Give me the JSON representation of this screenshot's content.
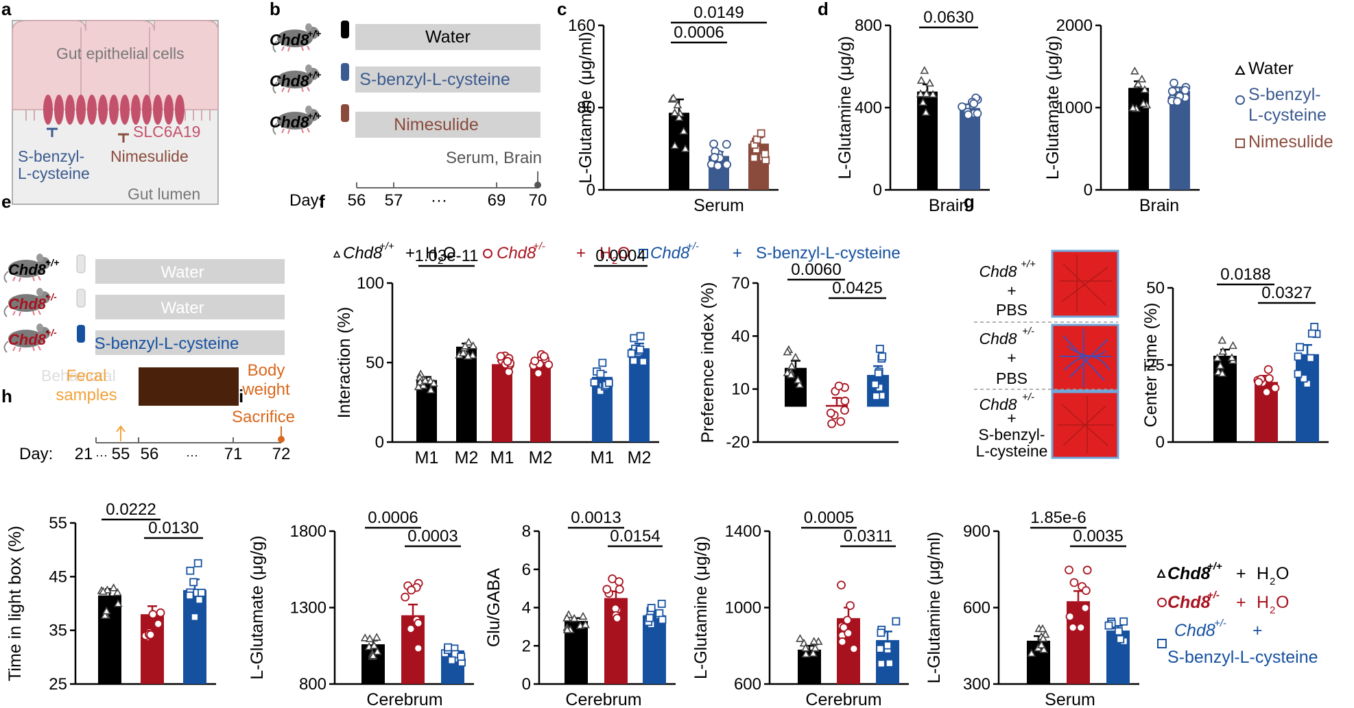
{
  "colors": {
    "water": "#000000",
    "sbc": "#3b5a8f",
    "nim": "#8a4b3c",
    "het": "#a8121e",
    "hsbc": "#1651a0",
    "pink": "#c4516b",
    "grey": "#d3d3d3",
    "orange": "#f2a23a",
    "darkorange": "#d9681c",
    "brown": "#4a210a"
  },
  "panels": {
    "a": "a",
    "b": "b",
    "c": "c",
    "d": "d",
    "e": "e",
    "f": "f",
    "g": "g",
    "h": "h",
    "i": "i"
  },
  "a": {
    "epithelial": "Gut epithelial cells",
    "transporter": "SLC6A19",
    "inhibitor1": [
      "S-benzyl-",
      "L-cysteine"
    ],
    "inhibitor2": "Nimesulide",
    "lumen": "Gut lumen"
  },
  "b": {
    "mouse_label": "Chd8",
    "mouse_sup": "+/+",
    "treatments": [
      "Water",
      "S-benzyl-L-cysteine",
      "Nimesulide"
    ],
    "endpoint": "Serum, Brain",
    "day_label": "Day:",
    "days": [
      "56",
      "57",
      "···",
      "69",
      "70"
    ]
  },
  "legend_d": {
    "items": [
      "Water",
      "S-benzyl-",
      "L-cysteine",
      "Nimesulide"
    ]
  },
  "e": {
    "genotypes": [
      "Chd8",
      "Chd8",
      "Chd8"
    ],
    "sups": [
      "+/+",
      "+/-",
      "+/-"
    ],
    "treatments": [
      "Water",
      "Water",
      "S-benzyl-L-cysteine"
    ],
    "behavior": "Behavioral",
    "fecal": [
      "Fecal",
      "samples"
    ],
    "body": [
      "Body",
      "weight"
    ],
    "sacrifice": "Sacrifice",
    "day_label": "Day:",
    "days": [
      "21",
      "···",
      "55",
      "56",
      "···",
      "71",
      "72"
    ]
  },
  "legend_f": {
    "g1": "Chd8",
    "s1": "+/+",
    "t1": "+",
    "h2o": "H",
    "o": "O",
    "sub2": "2",
    "g2": "Chd8",
    "s2": "+/-",
    "g3": "Chd8",
    "s3": "+/-",
    "sbc": "S-benzyl-L-cysteine"
  },
  "g": {
    "labels": [
      [
        "Chd8",
        "+/+",
        "+",
        "PBS"
      ],
      [
        "Chd8",
        "+/-",
        "+",
        "PBS"
      ],
      [
        "Chd8",
        "+/-",
        "+",
        "S-benzyl-",
        "L-cysteine"
      ]
    ]
  },
  "legend_i": {
    "g1": "Chd8",
    "s1": "+/+",
    "plus": "+",
    "h": "H",
    "o": "O",
    "sub2": "2",
    "g2": "Chd8",
    "s2": "+/-",
    "g3": "Chd8",
    "s3": "+/-",
    "sbc": "S-benzyl-L-cysteine"
  },
  "chart_data": [
    {
      "id": "c",
      "type": "bar",
      "ylabel": "L-Glutamine (μg/ml)",
      "xlabel": "Serum",
      "ylim": [
        0,
        160
      ],
      "yticks": [
        0,
        80,
        160
      ],
      "groups": [
        "Water",
        "S-benzyl-L-cysteine",
        "Nimesulide"
      ],
      "values": [
        75,
        33,
        45
      ],
      "errors": [
        13,
        4,
        6
      ],
      "pvalues": [
        {
          "from": 0,
          "to": 1,
          "label": "0.0006"
        },
        {
          "from": 0,
          "to": 2,
          "label": "0.0149"
        }
      ]
    },
    {
      "id": "d1",
      "type": "bar",
      "ylabel": "L-Glutamine (μg/g)",
      "xlabel": "Brain",
      "ylim": [
        0,
        800
      ],
      "yticks": [
        0,
        400,
        800
      ],
      "groups": [
        "Water",
        "S-benzyl-L-cysteine"
      ],
      "values": [
        478,
        398
      ],
      "errors": [
        35,
        18
      ],
      "pvalues": [
        {
          "from": 0,
          "to": 1,
          "label": "0.0630"
        }
      ]
    },
    {
      "id": "d2",
      "type": "bar",
      "ylabel": "L-Glutamate (μg/g)",
      "xlabel": "Brain",
      "ylim": [
        0,
        2000
      ],
      "yticks": [
        0,
        1000,
        2000
      ],
      "groups": [
        "Water",
        "S-benzyl-L-cysteine"
      ],
      "values": [
        1240,
        1200
      ],
      "errors": [
        80,
        45
      ],
      "pvalues": []
    },
    {
      "id": "f1",
      "type": "bar",
      "ylabel": "Interaction (%)",
      "xlabel": "",
      "ylim": [
        0,
        100
      ],
      "yticks": [
        0,
        50,
        100
      ],
      "categories": [
        "M1",
        "M2",
        "M1",
        "M2",
        "M1",
        "M2"
      ],
      "values": [
        39,
        60,
        49,
        49,
        41,
        59
      ],
      "errors": [
        2,
        2,
        2,
        2,
        3,
        3
      ],
      "pvalues": [
        {
          "from": 0,
          "to": 1,
          "label": "1.03e-11"
        },
        {
          "from": 4,
          "to": 5,
          "label": "0.0004"
        }
      ]
    },
    {
      "id": "f2",
      "type": "bar",
      "ylabel": "Preference index (%)",
      "xlabel": "",
      "ylim": [
        -20,
        70
      ],
      "yticks": [
        -20,
        10,
        40,
        70
      ],
      "groups": [
        "Chd8+/+ + H2O",
        "Chd8+/- + H2O",
        "Chd8+/- + S-benzyl-L-cysteine"
      ],
      "values": [
        22,
        1,
        18
      ],
      "errors": [
        4,
        4,
        5
      ],
      "pvalues": [
        {
          "from": 0,
          "to": 1,
          "label": "0.0060"
        },
        {
          "from": 1,
          "to": 2,
          "label": "0.0425"
        }
      ]
    },
    {
      "id": "g",
      "type": "bar",
      "ylabel": "Center Time (%)",
      "xlabel": "",
      "ylim": [
        0,
        50
      ],
      "yticks": [
        0,
        25,
        50
      ],
      "groups": [
        "Chd8+/+ + PBS",
        "Chd8+/- + PBS",
        "Chd8+/- + S-benzyl-L-cysteine"
      ],
      "values": [
        28,
        19.5,
        28.5
      ],
      "errors": [
        2,
        2,
        3
      ],
      "pvalues": [
        {
          "from": 0,
          "to": 1,
          "label": "0.0188"
        },
        {
          "from": 1,
          "to": 2,
          "label": "0.0327"
        }
      ]
    },
    {
      "id": "h",
      "type": "bar",
      "ylabel": "Time in light box (%)",
      "xlabel": "",
      "ylim": [
        25,
        55
      ],
      "yticks": [
        25,
        35,
        45,
        55
      ],
      "groups": [
        "Chd8+/+ + H2O",
        "Chd8+/- + H2O",
        "Chd8+/- + S-benzyl-L-cysteine"
      ],
      "values": [
        41.5,
        38,
        42.5
      ],
      "errors": [
        1.2,
        1.5,
        2
      ],
      "pvalues": [
        {
          "from": 0,
          "to": 1,
          "label": "0.0222"
        },
        {
          "from": 1,
          "to": 2,
          "label": "0.0130"
        }
      ]
    },
    {
      "id": "i1",
      "type": "bar",
      "ylabel": "L-Glutamate (μg/g)",
      "xlabel": "Cerebrum",
      "ylim": [
        800,
        1800
      ],
      "yticks": [
        800,
        1300,
        1800
      ],
      "groups": [
        "Chd8+/+ + H2O",
        "Chd8+/- + H2O",
        "Chd8+/- + S-benzyl-L-cysteine"
      ],
      "values": [
        1060,
        1250,
        1020
      ],
      "errors": [
        25,
        70,
        25
      ],
      "pvalues": [
        {
          "from": 0,
          "to": 1,
          "label": "0.0006"
        },
        {
          "from": 1,
          "to": 2,
          "label": "0.0003"
        }
      ]
    },
    {
      "id": "i2",
      "type": "bar",
      "ylabel": "Glu/GABA",
      "xlabel": "Cerebrum",
      "ylim": [
        0,
        8
      ],
      "yticks": [
        0,
        2,
        4,
        6,
        8
      ],
      "groups": [
        "Chd8+/+ + H2O",
        "Chd8+/- + H2O",
        "Chd8+/- + S-benzyl-L-cysteine"
      ],
      "values": [
        3.3,
        4.5,
        3.6
      ],
      "errors": [
        0.15,
        0.35,
        0.2
      ],
      "pvalues": [
        {
          "from": 0,
          "to": 1,
          "label": "0.0013"
        },
        {
          "from": 1,
          "to": 2,
          "label": "0.0154"
        }
      ]
    },
    {
      "id": "i3",
      "type": "bar",
      "ylabel": "L-Glutamine (μg/g)",
      "xlabel": "Cerebrum",
      "ylim": [
        600,
        1400
      ],
      "yticks": [
        600,
        1000,
        1400
      ],
      "groups": [
        "Chd8+/+ + H2O",
        "Chd8+/- + H2O",
        "Chd8+/- + S-benzyl-L-cysteine"
      ],
      "values": [
        780,
        945,
        830
      ],
      "errors": [
        20,
        55,
        45
      ],
      "pvalues": [
        {
          "from": 0,
          "to": 1,
          "label": "0.0005"
        },
        {
          "from": 1,
          "to": 2,
          "label": "0.0311"
        }
      ]
    },
    {
      "id": "i4",
      "type": "bar",
      "ylabel": "L-Glutamine (μg/ml)",
      "xlabel": "Serum",
      "ylim": [
        300,
        900
      ],
      "yticks": [
        300,
        600,
        900
      ],
      "groups": [
        "Chd8+/+ + H2O",
        "Chd8+/- + H2O",
        "Chd8+/- + S-benzyl-L-cysteine"
      ],
      "values": [
        470,
        625,
        510
      ],
      "errors": [
        18,
        40,
        18
      ],
      "pvalues": [
        {
          "from": 0,
          "to": 1,
          "label": "1.85e-6"
        },
        {
          "from": 1,
          "to": 2,
          "label": "0.0035"
        }
      ]
    }
  ]
}
